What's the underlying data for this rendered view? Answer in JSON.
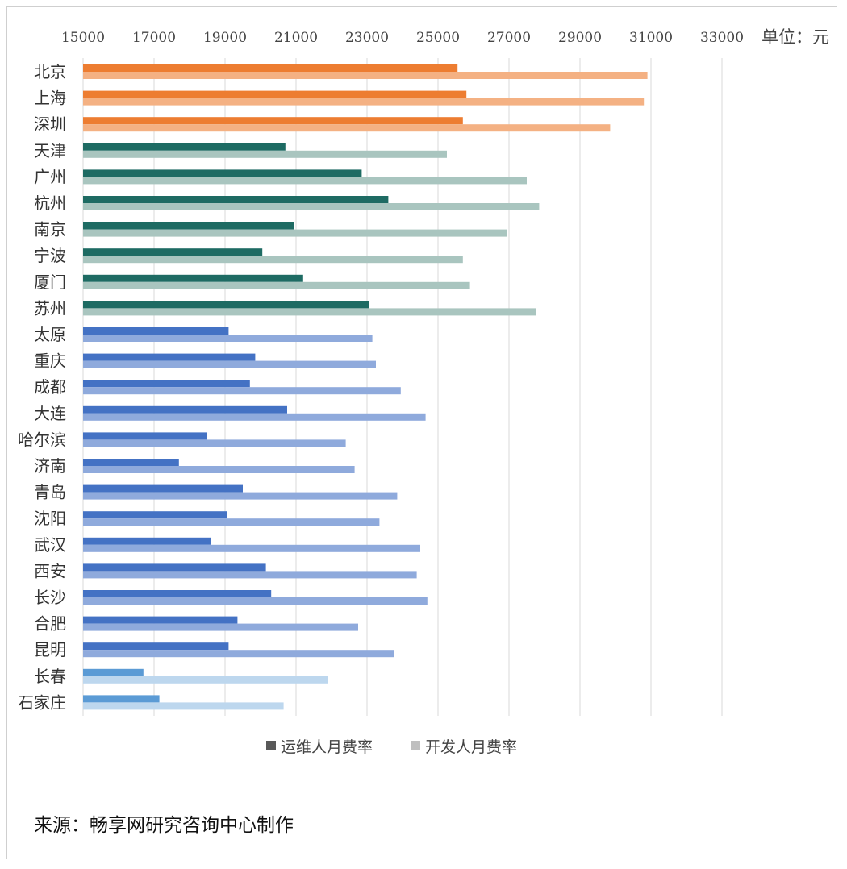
{
  "unit_label": "单位：元",
  "source": "来源：畅享网研究咨询中心制作",
  "legend": [
    {
      "label": "运维人月费率",
      "color": "#595959"
    },
    {
      "label": "开发人月费率",
      "color": "#bfbfbf"
    }
  ],
  "colors": {
    "tier1": {
      "ops": "#ed7d31",
      "dev": "#f4b183"
    },
    "tier2": {
      "ops": "#1e6b63",
      "dev": "#a9c5bf"
    },
    "tier3": {
      "ops": "#4472c4",
      "dev": "#8faadc"
    },
    "tier4": {
      "ops": "#5b9bd5",
      "dev": "#bdd7ee"
    }
  },
  "chart_data": {
    "type": "bar",
    "orientation": "horizontal",
    "xlim": [
      15000,
      35000
    ],
    "ticks": [
      15000,
      17000,
      19000,
      21000,
      23000,
      25000,
      27000,
      29000,
      31000,
      33000
    ],
    "grid": true,
    "legend_position": "bottom",
    "categories": [
      "北京",
      "上海",
      "深圳",
      "天津",
      "广州",
      "杭州",
      "南京",
      "宁波",
      "厦门",
      "苏州",
      "太原",
      "重庆",
      "成都",
      "大连",
      "哈尔滨",
      "济南",
      "青岛",
      "沈阳",
      "武汉",
      "西安",
      "长沙",
      "合肥",
      "昆明",
      "长春",
      "石家庄"
    ],
    "tiers": [
      "tier1",
      "tier1",
      "tier1",
      "tier2",
      "tier2",
      "tier2",
      "tier2",
      "tier2",
      "tier2",
      "tier2",
      "tier3",
      "tier3",
      "tier3",
      "tier3",
      "tier3",
      "tier3",
      "tier3",
      "tier3",
      "tier3",
      "tier3",
      "tier3",
      "tier3",
      "tier3",
      "tier4",
      "tier4"
    ],
    "series": [
      {
        "name": "运维人月费率",
        "values": [
          25550,
          25800,
          25700,
          20700,
          22850,
          23600,
          20950,
          20050,
          21200,
          23050,
          19100,
          19850,
          19700,
          20750,
          18500,
          17700,
          19500,
          19050,
          18600,
          20150,
          20300,
          19350,
          19100,
          16700,
          17150
        ]
      },
      {
        "name": "开发人月费率",
        "values": [
          30900,
          30800,
          29850,
          25250,
          27500,
          27850,
          26950,
          25700,
          25900,
          27750,
          23150,
          23250,
          23950,
          24650,
          22400,
          22650,
          23850,
          23350,
          24500,
          24400,
          24700,
          22750,
          23750,
          21900,
          20650
        ]
      }
    ]
  }
}
